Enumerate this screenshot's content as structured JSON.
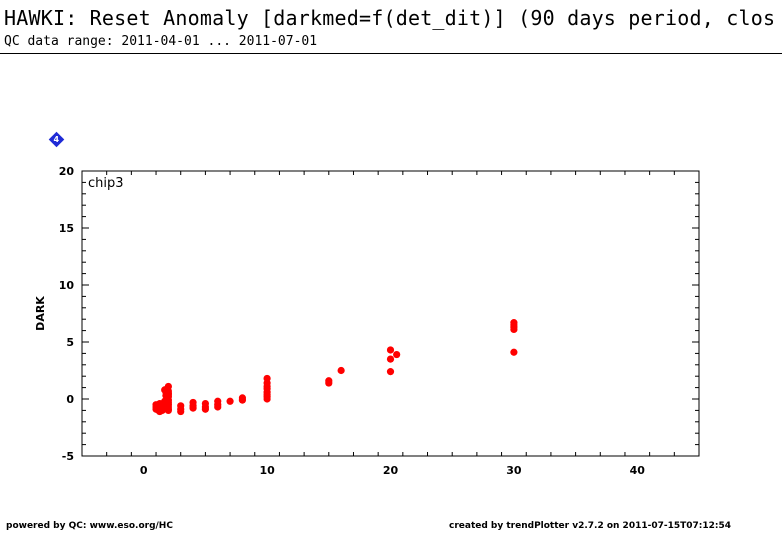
{
  "header": {
    "title": "HAWKI: Reset Anomaly [darkmed=f(det_dit)] (90 days period, clos",
    "subtitle": "QC data range: 2011-04-01 ... 2011-07-01"
  },
  "marker": {
    "label": "4",
    "color": "#1f2bd6"
  },
  "footer": {
    "left": "powered by QC: www.eso.org/HC",
    "right": "created by trendPlotter v2.7.2 on 2011-07-15T07:12:54"
  },
  "chart_data": {
    "type": "scatter",
    "panel_label": "chip3",
    "xlabel": "",
    "ylabel": "DARK",
    "xlim": [
      -5,
      45
    ],
    "ylim": [
      -5,
      20
    ],
    "xticks": [
      0,
      10,
      20,
      30,
      40
    ],
    "yticks": [
      -5,
      0,
      5,
      10,
      15,
      20
    ],
    "grid": false,
    "point_color": "#ff0000",
    "series": [
      {
        "x": [
          1,
          1,
          1,
          1.1,
          1.2,
          1.2,
          1.3,
          1.3,
          1.4,
          1.5,
          1.5,
          1.6,
          1.7,
          1.7,
          1.8,
          1.8,
          1.8,
          1.9,
          1.9,
          1.9,
          2,
          2,
          2,
          2,
          2,
          2,
          2,
          2,
          2,
          2,
          2,
          3,
          3,
          3,
          4,
          4,
          4,
          5,
          5,
          5,
          6,
          6,
          6,
          7,
          8,
          8,
          10,
          10,
          10,
          10,
          10,
          10,
          10,
          10,
          15,
          15,
          16,
          20,
          20,
          20,
          20.5,
          30,
          30,
          30,
          30,
          30
        ],
        "y": [
          -0.5,
          -0.7,
          -0.9,
          -0.6,
          -0.8,
          -1.0,
          -0.4,
          -1.1,
          -0.9,
          -0.7,
          -1.0,
          -0.5,
          0.8,
          -0.2,
          0.6,
          0.3,
          -0.8,
          0.9,
          0.0,
          -0.6,
          1.1,
          0.7,
          0.4,
          0.2,
          -0.1,
          -0.3,
          -0.5,
          -0.7,
          -0.9,
          -1.0,
          0.5,
          -0.6,
          -0.9,
          -1.1,
          -0.3,
          -0.6,
          -0.8,
          -0.4,
          -0.7,
          -0.9,
          -0.2,
          -0.5,
          -0.7,
          -0.2,
          -0.1,
          0.1,
          1.8,
          1.4,
          1.1,
          0.9,
          0.6,
          0.4,
          0.2,
          0.0,
          1.6,
          1.4,
          2.5,
          4.3,
          3.5,
          2.4,
          3.9,
          6.7,
          6.5,
          6.3,
          6.1,
          4.1
        ]
      }
    ]
  }
}
